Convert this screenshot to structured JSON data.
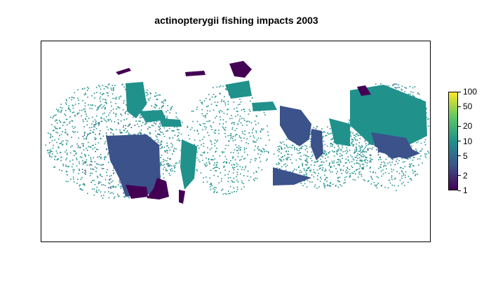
{
  "title": "actinopterygii fishing impacts 2003",
  "legend": {
    "scale": "log",
    "range": [
      1,
      100
    ],
    "ticks": [
      {
        "value": 100,
        "label": "100"
      },
      {
        "value": 50,
        "label": "50"
      },
      {
        "value": 20,
        "label": "20"
      },
      {
        "value": 10,
        "label": "10"
      },
      {
        "value": 5,
        "label": "5"
      },
      {
        "value": 2,
        "label": "2"
      },
      {
        "value": 1,
        "label": "1"
      }
    ],
    "colors": [
      "#440154",
      "#3b528b",
      "#21918c",
      "#5ec962",
      "#fde725"
    ]
  },
  "colors": {
    "low": "#440154",
    "mid_low": "#3b528b",
    "mid": "#21918c",
    "high": "#fde725"
  }
}
